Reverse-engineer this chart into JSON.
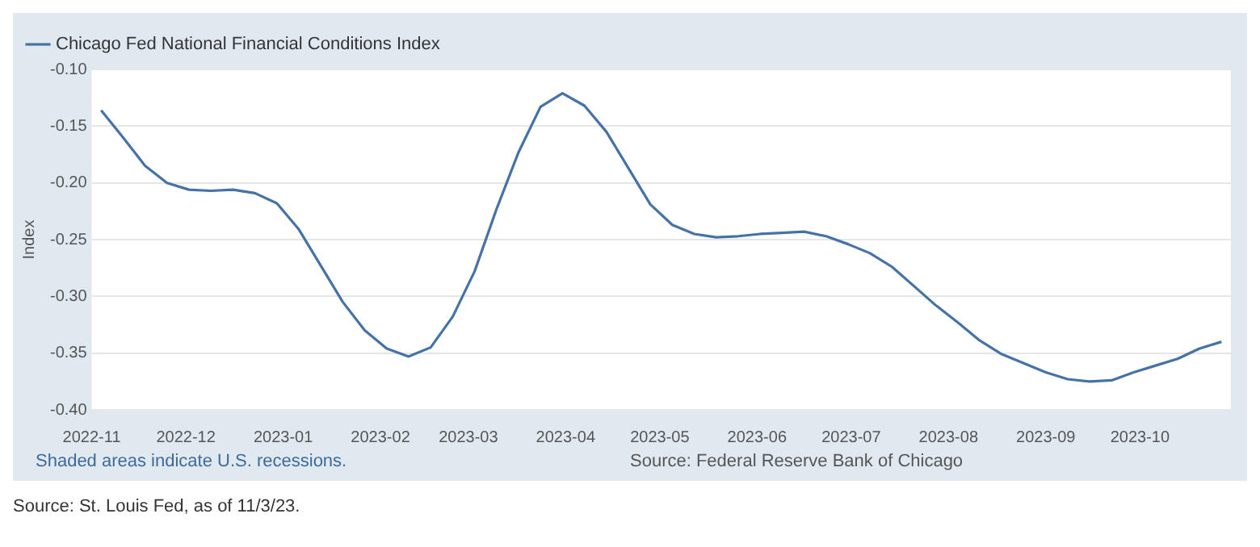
{
  "chart_data": {
    "type": "line",
    "ylabel": "Index",
    "x": [
      "2022-11-04",
      "2022-11-11",
      "2022-11-18",
      "2022-11-25",
      "2022-12-02",
      "2022-12-09",
      "2022-12-16",
      "2022-12-23",
      "2022-12-30",
      "2023-01-06",
      "2023-01-13",
      "2023-01-20",
      "2023-01-27",
      "2023-02-03",
      "2023-02-10",
      "2023-02-17",
      "2023-02-24",
      "2023-03-03",
      "2023-03-10",
      "2023-03-17",
      "2023-03-24",
      "2023-03-31",
      "2023-04-07",
      "2023-04-14",
      "2023-04-21",
      "2023-04-28",
      "2023-05-05",
      "2023-05-12",
      "2023-05-19",
      "2023-05-26",
      "2023-06-02",
      "2023-06-09",
      "2023-06-16",
      "2023-06-23",
      "2023-06-30",
      "2023-07-07",
      "2023-07-14",
      "2023-07-21",
      "2023-07-28",
      "2023-08-04",
      "2023-08-11",
      "2023-08-18",
      "2023-08-25",
      "2023-09-01",
      "2023-09-08",
      "2023-09-15",
      "2023-09-22",
      "2023-09-29",
      "2023-10-06",
      "2023-10-13",
      "2023-10-20",
      "2023-10-27"
    ],
    "series": [
      {
        "name": "Chicago Fed National Financial Conditions Index",
        "color": "#4572a7",
        "values": [
          -0.136,
          -0.16,
          -0.185,
          -0.2,
          -0.206,
          -0.207,
          -0.206,
          -0.209,
          -0.218,
          -0.241,
          -0.273,
          -0.305,
          -0.33,
          -0.346,
          -0.353,
          -0.345,
          -0.318,
          -0.278,
          -0.223,
          -0.173,
          -0.133,
          -0.121,
          -0.132,
          -0.155,
          -0.187,
          -0.219,
          -0.237,
          -0.245,
          -0.248,
          -0.247,
          -0.245,
          -0.244,
          -0.243,
          -0.247,
          -0.254,
          -0.262,
          -0.274,
          -0.291,
          -0.308,
          -0.323,
          -0.339,
          -0.351,
          -0.359,
          -0.367,
          -0.373,
          -0.375,
          -0.374,
          -0.367,
          -0.361,
          -0.355,
          -0.346,
          -0.34
        ]
      }
    ],
    "xlim": [
      "2022-11-01",
      "2023-10-30"
    ],
    "xticks": [
      {
        "value": "2022-11-01",
        "label": "2022-11"
      },
      {
        "value": "2022-12-01",
        "label": "2022-12"
      },
      {
        "value": "2023-01-01",
        "label": "2023-01"
      },
      {
        "value": "2023-02-01",
        "label": "2023-02"
      },
      {
        "value": "2023-03-01",
        "label": "2023-03"
      },
      {
        "value": "2023-04-01",
        "label": "2023-04"
      },
      {
        "value": "2023-05-01",
        "label": "2023-05"
      },
      {
        "value": "2023-06-01",
        "label": "2023-06"
      },
      {
        "value": "2023-07-01",
        "label": "2023-07"
      },
      {
        "value": "2023-08-01",
        "label": "2023-08"
      },
      {
        "value": "2023-09-01",
        "label": "2023-09"
      },
      {
        "value": "2023-10-01",
        "label": "2023-10"
      }
    ],
    "ylim": [
      -0.4,
      -0.1
    ],
    "yticks": [
      {
        "value": -0.4,
        "label": "-0.40"
      },
      {
        "value": -0.35,
        "label": "-0.35"
      },
      {
        "value": -0.3,
        "label": "-0.30"
      },
      {
        "value": -0.25,
        "label": "-0.25"
      },
      {
        "value": -0.2,
        "label": "-0.20"
      },
      {
        "value": -0.15,
        "label": "-0.15"
      },
      {
        "value": -0.1,
        "label": "-0.10"
      }
    ],
    "grid": "y",
    "legend": "top left",
    "annotations": [
      "Shaded areas indicate U.S. recessions.",
      "Source: Federal Reserve Bank of Chicago",
      "Source: St. Louis Fed, as of 11/3/23."
    ]
  }
}
